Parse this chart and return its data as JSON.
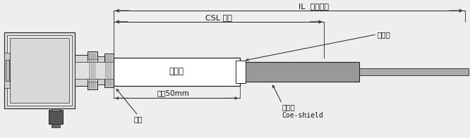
{
  "bg_color": "#eeeeee",
  "line_color": "#222222",
  "white": "#ffffff",
  "light_gray": "#cccccc",
  "mid_gray": "#999999",
  "dark_gray": "#666666",
  "very_dark": "#444444",
  "text_color": "#111111",
  "annotations": {
    "IL_label": "IL  插入長度",
    "CSL_label": "CSL 長度",
    "jyd_box": "絕緣段",
    "jyd_right": "絕緣段",
    "zuixiao": "最小50mm",
    "jinshuguan": "金屬管",
    "coeshield": "Coe-shield",
    "bibi": "碑壁"
  },
  "figsize": [
    6.66,
    1.96
  ],
  "dpi": 100
}
